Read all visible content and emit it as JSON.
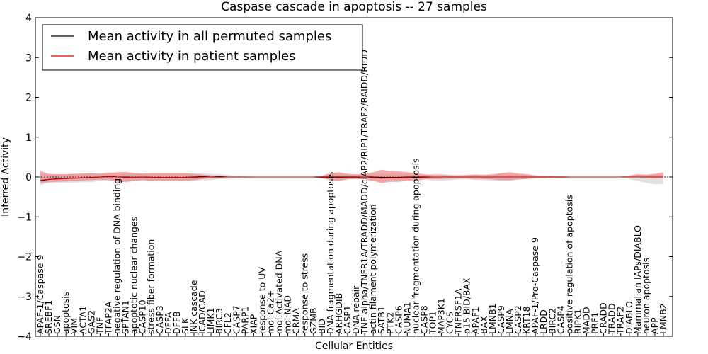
{
  "chart_data": {
    "type": "line",
    "title": "Caspase cascade in apoptosis -- 27 samples",
    "xlabel": "Cellular Entities",
    "ylabel": "Inferred Activity",
    "ylim": [
      -4,
      4
    ],
    "yticks": [
      "−4",
      "−3",
      "−2",
      "−1",
      "0",
      "1",
      "2",
      "3",
      "4"
    ],
    "legend": {
      "placement": "top-left",
      "entries": [
        {
          "label": "Mean activity in all permuted samples",
          "color": "#000000"
        },
        {
          "label": "Mean activity in patient samples",
          "color": "#e00000"
        }
      ]
    },
    "colors": {
      "permuted": "#000000",
      "patient": "#e00000",
      "permuted_band": "#c8c8c8",
      "patient_band": "#f08080"
    },
    "categories": [
      "APAF-1/Caspase 9",
      "SREBF1",
      "GSN",
      "apoptosis",
      "VIM",
      "ACTA1",
      "GAS2",
      "TNF",
      "TFAP2A",
      "negative regulation of DNA binding",
      "SPTAN1",
      "apoptotic nuclear changes",
      "CASP10",
      "stress fiber formation",
      "CASP3",
      "DFFA",
      "DFFB",
      "SLK",
      "JNK cascade",
      "ICAD/CAD",
      "LIMK1",
      "BIRC3",
      "CFL2",
      "CASP7",
      "PARP1",
      "XIAP",
      "response to UV",
      "mol:Ca2+",
      "mol:Activated DNA",
      "mol:NAD",
      "CRMA",
      "response to stress",
      "GZMB",
      "BID",
      "DNA fragmentation during apoptosis",
      "ARHGDIB",
      "CASP1",
      "DNA repair",
      "TNF-alpha/TNFR1A/TRADD/MADD/cIAP2/RIP1/TRAF2/RAIDD/RIDD",
      "actin filament polymerization",
      "SATB1",
      "PTK2",
      "CASP6",
      "NUMA1",
      "nuclear fragmentation during apoptosis",
      "CASP8",
      "TOP1",
      "MAP3K1",
      "CYCS",
      "TNFRSF1A",
      "p15 BID/BAX",
      "APAF1",
      "BAX",
      "LMNB1",
      "CASP9",
      "LMNA",
      "CASP2",
      "KRT18",
      "APAF-1/Pro-Caspase 9",
      "LRDD",
      "BIRC2",
      "CASP4",
      "positive regulation of apoptosis",
      "RIPK1",
      "MADD",
      "PRF1",
      "CRADD",
      "TRADD",
      "TRAF2",
      "DIABLO",
      "Mammalian IAPs/DIABLO",
      "neuron apoptosis",
      "APP",
      "LMNB2"
    ],
    "series": [
      {
        "name": "Mean activity in all permuted samples",
        "values": [
          -0.1,
          -0.06,
          -0.04,
          -0.03,
          -0.03,
          -0.02,
          -0.02,
          0.0,
          0.02,
          0.0,
          0.0,
          -0.01,
          0.0,
          -0.01,
          -0.01,
          -0.01,
          -0.01,
          -0.01,
          0.0,
          0.01,
          0.0,
          0.01,
          0.0,
          0.0,
          0.0,
          0.0,
          0.0,
          0.0,
          0.0,
          0.0,
          0.0,
          0.0,
          0.0,
          0.0,
          0.0,
          0.0,
          0.0,
          0.0,
          0.0,
          0.0,
          -0.01,
          -0.01,
          -0.01,
          0.0,
          0.0,
          0.0,
          0.0,
          0.0,
          0.0,
          0.0,
          0.0,
          0.0,
          0.0,
          0.0,
          0.0,
          0.0,
          0.0,
          0.0,
          0.0,
          0.0,
          0.0,
          0.0,
          0.0,
          0.0,
          0.0,
          0.0,
          0.0,
          0.0,
          0.0,
          0.0,
          0.0,
          0.0,
          0.0,
          0.0
        ],
        "lower": [
          -0.2,
          -0.15,
          -0.14,
          -0.14,
          -0.14,
          -0.13,
          -0.13,
          -0.1,
          -0.07,
          -0.08,
          -0.09,
          -0.1,
          -0.07,
          -0.1,
          -0.1,
          -0.1,
          -0.1,
          -0.1,
          -0.09,
          -0.08,
          -0.08,
          -0.05,
          -0.05,
          -0.03,
          -0.02,
          -0.01,
          -0.01,
          -0.01,
          -0.01,
          -0.01,
          -0.01,
          -0.01,
          -0.01,
          -0.02,
          -0.08,
          -0.08,
          -0.05,
          -0.05,
          -0.05,
          -0.08,
          -0.08,
          -0.08,
          -0.08,
          -0.08,
          -0.05,
          -0.05,
          -0.1,
          -0.1,
          -0.08,
          -0.06,
          -0.05,
          -0.08,
          -0.08,
          -0.1,
          -0.1,
          -0.1,
          -0.06,
          -0.05,
          -0.03,
          -0.03,
          -0.02,
          -0.02,
          -0.01,
          -0.01,
          -0.01,
          -0.01,
          -0.01,
          -0.01,
          -0.01,
          -0.05,
          -0.1,
          -0.15,
          -0.18,
          -0.18
        ],
        "upper": [
          0.08,
          0.06,
          0.06,
          0.07,
          0.08,
          0.08,
          0.09,
          0.1,
          0.12,
          0.1,
          0.1,
          0.08,
          0.08,
          0.08,
          0.08,
          0.08,
          0.08,
          0.08,
          0.09,
          0.1,
          0.08,
          0.07,
          0.05,
          0.03,
          0.02,
          0.01,
          0.01,
          0.01,
          0.01,
          0.01,
          0.01,
          0.01,
          0.01,
          0.02,
          0.08,
          0.08,
          0.05,
          0.05,
          0.05,
          0.08,
          0.08,
          0.08,
          0.08,
          0.08,
          0.05,
          0.05,
          0.08,
          0.08,
          0.06,
          0.05,
          0.05,
          0.06,
          0.06,
          0.08,
          0.08,
          0.08,
          0.06,
          0.05,
          0.03,
          0.03,
          0.02,
          0.02,
          0.01,
          0.01,
          0.01,
          0.01,
          0.01,
          0.01,
          0.01,
          0.03,
          0.05,
          0.05,
          0.06,
          0.06
        ]
      },
      {
        "name": "Mean activity in patient samples",
        "values": [
          -0.08,
          -0.06,
          -0.05,
          -0.04,
          -0.03,
          -0.02,
          -0.01,
          0.0,
          0.01,
          0.0,
          -0.01,
          -0.01,
          0.0,
          -0.01,
          -0.01,
          -0.01,
          -0.01,
          -0.01,
          -0.01,
          0.0,
          0.0,
          0.0,
          0.0,
          0.0,
          0.0,
          0.0,
          0.0,
          0.0,
          0.0,
          0.0,
          0.0,
          0.0,
          0.0,
          -0.01,
          -0.01,
          -0.02,
          -0.01,
          -0.01,
          0.0,
          -0.02,
          -0.03,
          -0.02,
          -0.02,
          -0.01,
          -0.02,
          -0.01,
          0.0,
          0.0,
          0.0,
          0.0,
          0.0,
          0.0,
          0.0,
          0.0,
          0.0,
          0.0,
          0.0,
          0.0,
          0.0,
          0.0,
          0.0,
          0.0,
          0.0,
          0.0,
          0.0,
          0.0,
          0.0,
          0.0,
          0.0,
          0.0,
          0.0,
          0.0,
          0.0,
          0.0
        ],
        "lower": [
          -0.15,
          -0.13,
          -0.12,
          -0.11,
          -0.1,
          -0.09,
          -0.08,
          -0.07,
          -0.08,
          -0.12,
          -0.13,
          -0.1,
          -0.08,
          -0.1,
          -0.1,
          -0.1,
          -0.1,
          -0.1,
          -0.08,
          -0.05,
          -0.03,
          -0.02,
          -0.01,
          -0.01,
          -0.01,
          -0.01,
          -0.01,
          -0.01,
          -0.01,
          -0.01,
          -0.01,
          -0.01,
          -0.01,
          -0.03,
          -0.08,
          -0.1,
          -0.06,
          -0.05,
          -0.06,
          -0.1,
          -0.15,
          -0.12,
          -0.12,
          -0.1,
          -0.1,
          -0.06,
          -0.05,
          -0.05,
          -0.04,
          -0.04,
          -0.04,
          -0.05,
          -0.05,
          -0.06,
          -0.08,
          -0.08,
          -0.06,
          -0.05,
          -0.03,
          -0.03,
          -0.02,
          -0.02,
          -0.01,
          -0.01,
          -0.01,
          -0.01,
          -0.01,
          -0.01,
          -0.01,
          -0.01,
          -0.01,
          -0.02,
          -0.03,
          -0.03
        ],
        "upper": [
          0.15,
          0.08,
          0.07,
          0.07,
          0.08,
          0.09,
          0.1,
          0.08,
          0.1,
          0.12,
          0.13,
          0.1,
          0.09,
          0.1,
          0.1,
          0.1,
          0.1,
          0.1,
          0.08,
          0.06,
          0.04,
          0.02,
          0.01,
          0.01,
          0.01,
          0.01,
          0.01,
          0.01,
          0.01,
          0.01,
          0.01,
          0.01,
          0.01,
          0.03,
          0.1,
          0.12,
          0.08,
          0.07,
          0.08,
          0.12,
          0.18,
          0.15,
          0.14,
          0.12,
          0.1,
          0.07,
          0.05,
          0.05,
          0.04,
          0.04,
          0.05,
          0.06,
          0.05,
          0.06,
          0.1,
          0.12,
          0.09,
          0.07,
          0.04,
          0.03,
          0.02,
          0.02,
          0.01,
          0.01,
          0.01,
          0.01,
          0.01,
          0.01,
          0.01,
          0.04,
          0.07,
          0.06,
          0.08,
          0.12
        ]
      }
    ]
  }
}
